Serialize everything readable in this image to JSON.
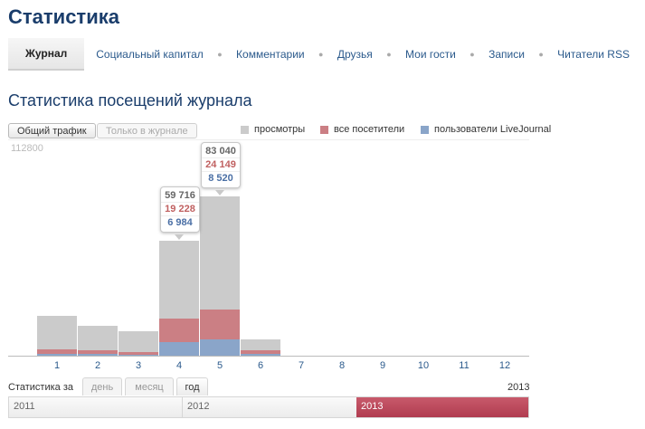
{
  "page": {
    "title": "Статистика"
  },
  "tabs": [
    {
      "label": "Журнал",
      "active": true
    },
    {
      "label": "Социальный капитал",
      "active": false
    },
    {
      "label": "Комментарии",
      "active": false
    },
    {
      "label": "Друзья",
      "active": false
    },
    {
      "label": "Мои гости",
      "active": false
    },
    {
      "label": "Записи",
      "active": false
    },
    {
      "label": "Читатели RSS",
      "active": false
    }
  ],
  "section": {
    "title": "Статистика посещений журнала"
  },
  "filters": {
    "all_traffic": "Общий трафик",
    "journal_only": "Только в журнале"
  },
  "legend": {
    "views": "просмотры",
    "all_visitors": "все посетители",
    "lj_users": "пользователи LiveJournal"
  },
  "colors": {
    "views": "#cbcbcb",
    "all_visitors": "#cb7f84",
    "lj_users": "#8aa5c9",
    "accent": "#b03c50"
  },
  "chart_data": {
    "type": "bar",
    "ymax_label": "112800",
    "ylim": [
      0,
      112800
    ],
    "categories": [
      "1",
      "2",
      "3",
      "4",
      "5",
      "6",
      "7",
      "8",
      "9",
      "10",
      "11",
      "12"
    ],
    "series": [
      {
        "name": "просмотры",
        "values": [
          21000,
          15500,
          12700,
          59716,
          83040,
          8700,
          0,
          0,
          0,
          0,
          0,
          0
        ]
      },
      {
        "name": "все посетители",
        "values": [
          3200,
          2800,
          1800,
          19228,
          24149,
          3000,
          0,
          0,
          0,
          0,
          0,
          0
        ]
      },
      {
        "name": "пользователи LiveJournal",
        "values": [
          1000,
          900,
          600,
          6984,
          8520,
          1100,
          0,
          0,
          0,
          0,
          0,
          0
        ]
      }
    ],
    "tooltips": [
      {
        "month": "4",
        "views": "59 716",
        "visitors": "19 228",
        "lj": "6 984"
      },
      {
        "month": "5",
        "views": "83 040",
        "visitors": "24 149",
        "lj": "8 520"
      }
    ]
  },
  "period": {
    "label": "Статистика за",
    "day": "день",
    "month": "месяц",
    "year": "год",
    "current_year": "2013"
  },
  "timeline": {
    "years": [
      "2011",
      "2012",
      "2013"
    ],
    "selected": "2013"
  }
}
